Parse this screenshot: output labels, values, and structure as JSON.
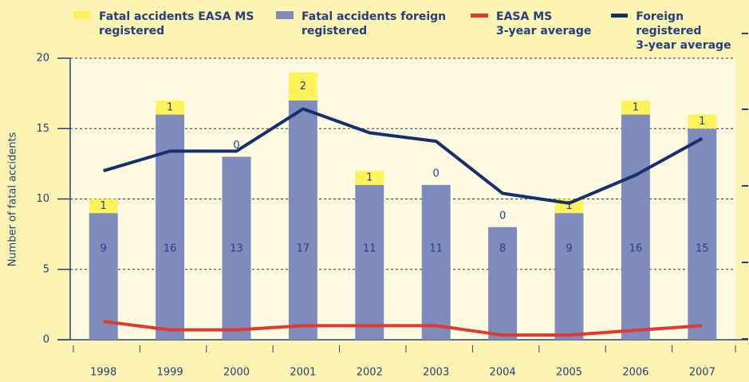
{
  "chart_data": {
    "type": "bar",
    "ylabel": "Number of fatal accidents",
    "categories": [
      "1998",
      "1999",
      "2000",
      "2001",
      "2002",
      "2003",
      "2004",
      "2005",
      "2006",
      "2007"
    ],
    "series": [
      {
        "name": "Fatal accidents EASA MS\nregistered",
        "kind": "bar",
        "color": "#fff25a",
        "values": [
          1,
          1,
          0,
          2,
          1,
          0,
          0,
          1,
          1,
          1
        ]
      },
      {
        "name": "Fatal accidents foreign\nregistered",
        "kind": "bar",
        "color": "#7f8bbd",
        "values": [
          9,
          16,
          13,
          17,
          11,
          11,
          8,
          9,
          16,
          15
        ]
      },
      {
        "name": "EASA MS\n3-year average",
        "kind": "line",
        "color": "#e03a2e",
        "values": [
          1.3,
          0.7,
          0.7,
          1.0,
          1.0,
          1.0,
          0.33,
          0.33,
          0.67,
          1.0
        ]
      },
      {
        "name": "Foreign registered\n3-year average",
        "kind": "line",
        "color": "#16306e",
        "values": [
          12.0,
          13.4,
          13.4,
          16.4,
          14.7,
          14.1,
          10.4,
          9.7,
          11.7,
          14.3
        ]
      }
    ],
    "ylim": [
      0,
      20
    ],
    "yticks": [
      0,
      5,
      10,
      15,
      20
    ],
    "grid": true
  }
}
